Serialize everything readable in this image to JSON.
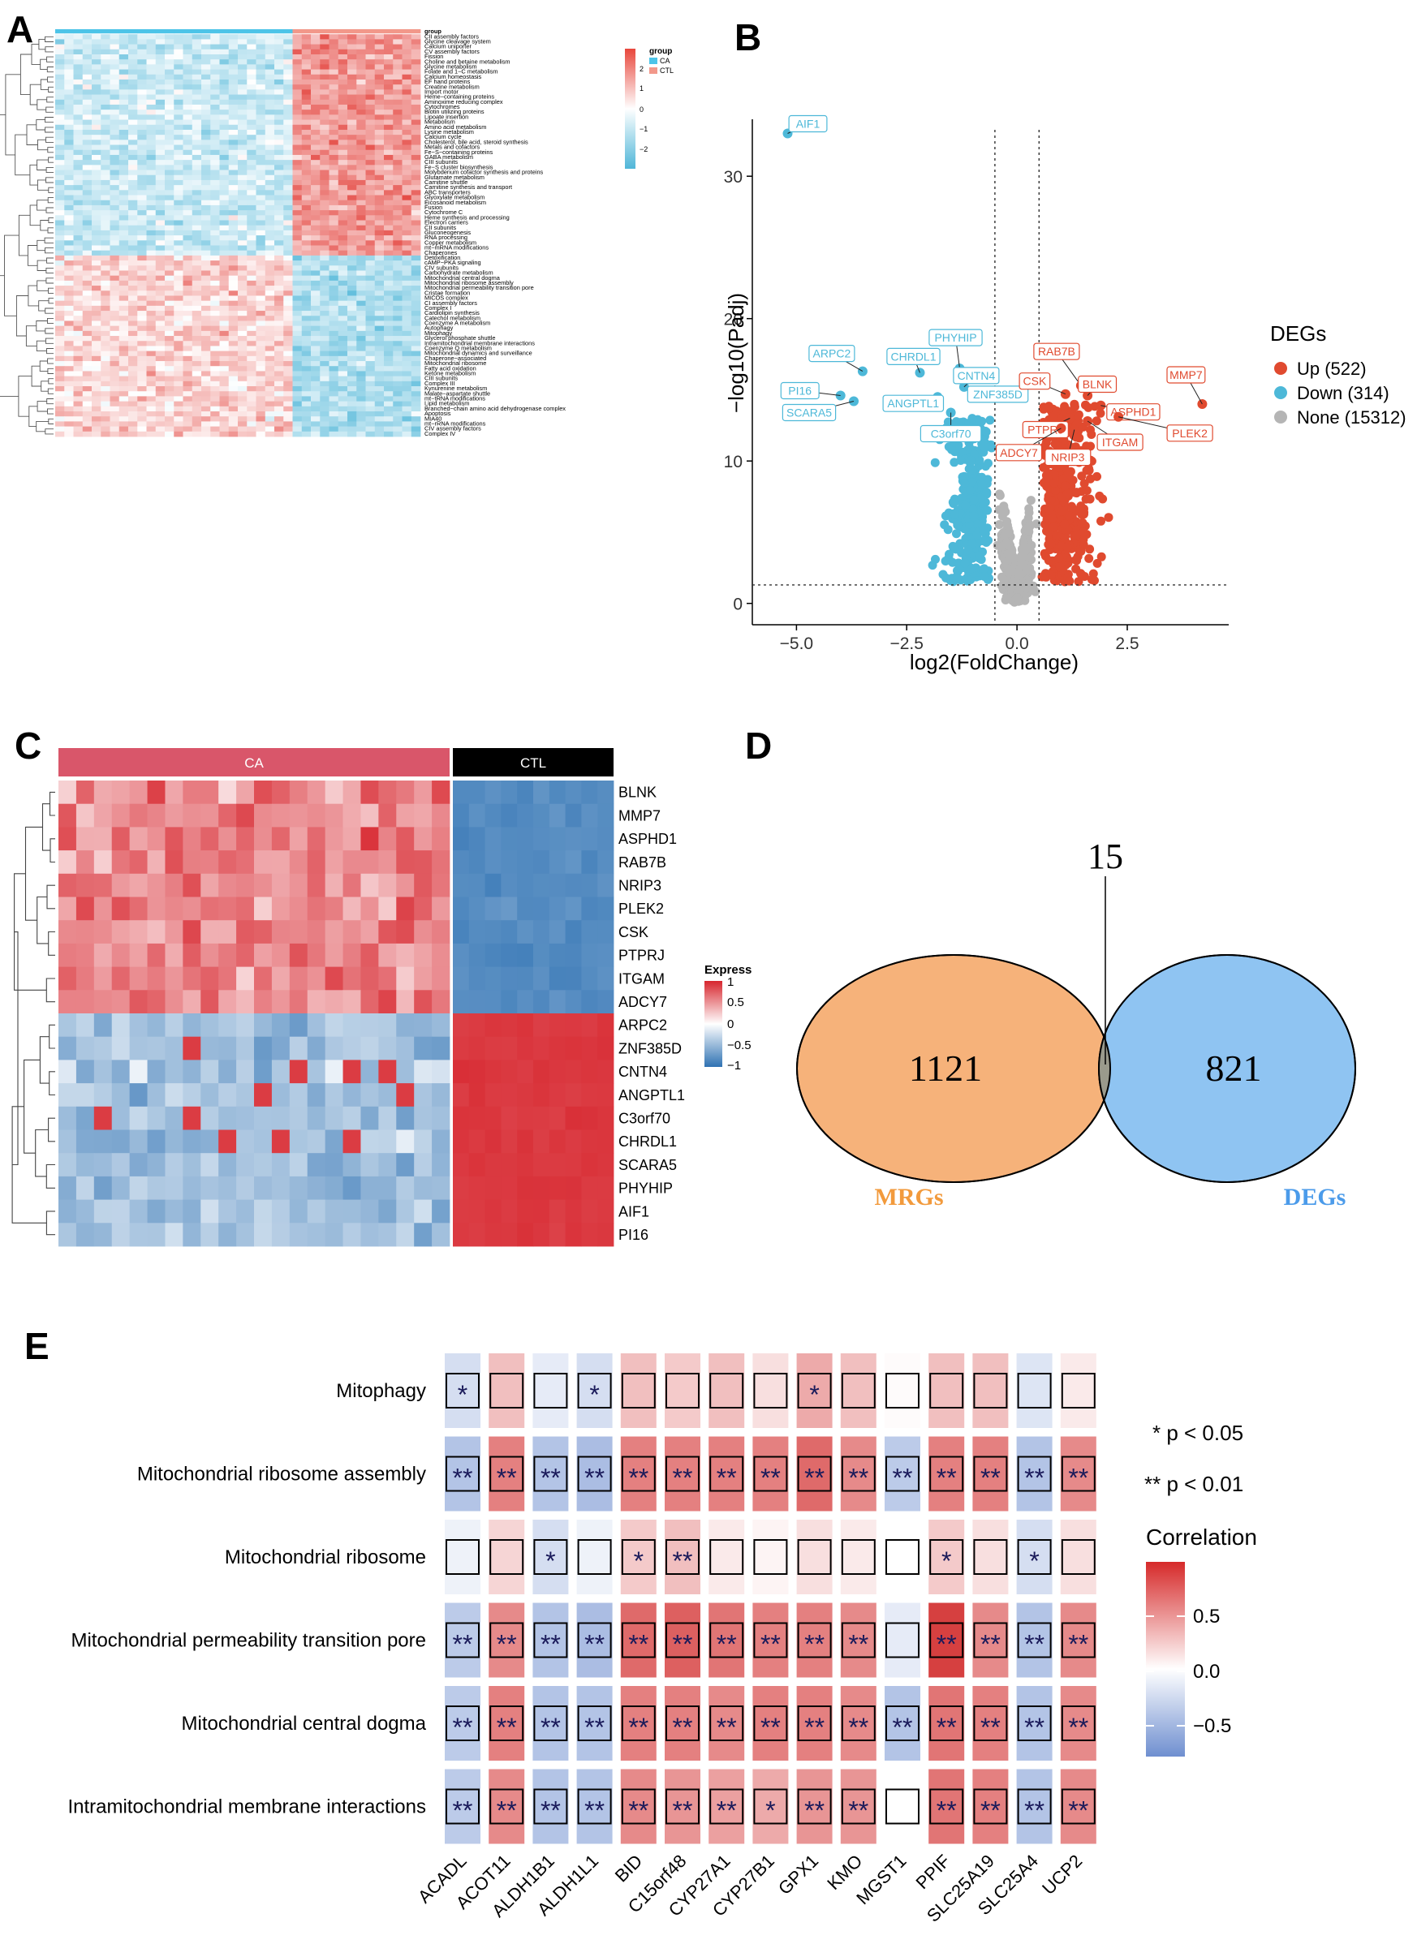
{
  "colors": {
    "up": "#E04A2F",
    "down": "#4DB8D8",
    "none": "#B5B5B5",
    "heat_red": "#D7262E",
    "heat_blue": "#2F72B3",
    "mrgs": "#F6B27A",
    "degs": "#8FC4F2",
    "ca_bar": "#D9566A",
    "ctl_bar": "#000000"
  },
  "panels": {
    "A": {
      "letter": "A",
      "legend_group_title": "group",
      "legend_groups": [
        "CA",
        "CTL"
      ],
      "scale_ticks": [
        "2",
        "1",
        "0",
        "−1",
        "−2"
      ],
      "row_labels": [
        "group",
        "CII assembly factors",
        "Glycine cleavage system",
        "Calcium uniporter",
        "CV assembly factors",
        "Fission",
        "Choline and betaine metabolism",
        "Glycine metabolism",
        "Folate and 1−C metabolism",
        "Calcium homeostasis",
        "EF hand proteins",
        "Creatine metabolism",
        "Import motor",
        "Heme−containing proteins",
        "Aminoxime reducing complex",
        "Cytochromes",
        "Biotin utilizing proteins",
        "Lipoate insertion",
        "Metabolism",
        "Amino acid metabolism",
        "Lysine metabolism",
        "Calcium cycle",
        "Cholesterol, bile acid, steroid synthesis",
        "Metals and cofactors",
        "Fe−S−containing proteins",
        "GABA metabolism",
        "CIII subunits",
        "Fe−S cluster biosynthesis",
        "Molybdenum cofactor synthesis and proteins",
        "Glutamate metabolism",
        "Carnitine shuttle",
        "Carnitine synthesis and transport",
        "ABC transporters",
        "Glyoxylate metabolism",
        "Eicosanoid metabolism",
        "Fusion",
        "Cytochrome C",
        "Heme synthesis and processing",
        "Electron carriers",
        "CII subunits",
        "Gluconeogenesis",
        "RNA processing",
        "Copper metabolism",
        "mt−mRNA modifications",
        "Chaperones",
        "Detoxification",
        "cAMP−PKA signaling",
        "CIV subunits",
        "Carbohydrate metabolism",
        "Mitochondrial central dogma",
        "Mitochondrial ribosome assembly",
        "Mitochondrial permeability transition pore",
        "Cristae formation",
        "MICOS complex",
        "CI assembly factors",
        "Complex I",
        "Cardiolipin synthesis",
        "Catechol metabolism",
        "Coenzyme A metabolism",
        "Autophagy",
        "Mitophagy",
        "Glycerol phosphate shuttle",
        "Intramitochondrial membrane interactions",
        "Coenzyme Q metabolism",
        "Mitochondrial dynamics and surveillance",
        "Chaperone−associated",
        "Mitochondrial ribosome",
        "Fatty acid oxidation",
        "Ketone metabolism",
        "CIII subunits",
        "Complex III",
        "Kynurenine metabolism",
        "Malate−aspartate shuttle",
        "mt−tRNA modifications",
        "Lipid metabolism",
        "Branched−chain amino acid dehydrogenase complex",
        "Apoptosis",
        "MIA40",
        "mt−rRNA modifications",
        "CIV assembly factors",
        "Complex IV"
      ]
    },
    "B": {
      "letter": "B",
      "xlabel": "log2(FoldChange)",
      "ylabel": "−log10(Padj)",
      "xticks": [
        "−5.0",
        "−2.5",
        "0.0",
        "2.5"
      ],
      "yticks": [
        "0",
        "10",
        "20",
        "30"
      ],
      "legend_title": "DEGs",
      "legend_items": [
        "Up (522)",
        "Down (314)",
        "None (15312)"
      ],
      "gene_labels": [
        "AIF1",
        "PHYHIP",
        "ARPC2",
        "CHRDL1",
        "CNTN4",
        "PI16",
        "ANGPTL1",
        "ZNF385D",
        "SCARA5",
        "C3orf70",
        "RAB7B",
        "MMP7",
        "CSK",
        "BLNK",
        "ASPHD1",
        "PTPRJ",
        "ITGAM",
        "PLEK2",
        "ADCY7",
        "NRIP3"
      ]
    },
    "C": {
      "letter": "C",
      "group_labels": [
        "CA",
        "CTL"
      ],
      "legend_title": "Express",
      "legend_ticks": [
        "1",
        "0.5",
        "0",
        "−0.5",
        "−1"
      ],
      "genes": [
        "BLNK",
        "MMP7",
        "ASPHD1",
        "RAB7B",
        "NRIP3",
        "PLEK2",
        "CSK",
        "PTPRJ",
        "ITGAM",
        "ADCY7",
        "ARPC2",
        "ZNF385D",
        "CNTN4",
        "ANGPTL1",
        "C3orf70",
        "CHRDL1",
        "SCARA5",
        "PHYHIP",
        "AIF1",
        "PI16"
      ]
    },
    "D": {
      "letter": "D",
      "intersection": "15",
      "left_only": "1121",
      "right_only": "821",
      "left_label": "MRGs",
      "right_label": "DEGs"
    },
    "E": {
      "letter": "E",
      "sig1": "* p < 0.05",
      "sig2": "** p < 0.01",
      "legend_title": "Correlation",
      "legend_ticks": [
        "0.5",
        "0.0",
        "−0.5"
      ]
    }
  },
  "chart_data": [
    {
      "type": "heatmap",
      "panel": "A",
      "groups": [
        "CA",
        "CTL"
      ],
      "color_range": [
        -2,
        2
      ]
    },
    {
      "type": "scatter",
      "panel": "B",
      "xlabel": "log2(FoldChange)",
      "ylabel": "−log10(Padj)",
      "xlim": [
        -6,
        4.8
      ],
      "ylim": [
        -1.5,
        34
      ],
      "thresholds": {
        "x": [
          -0.5,
          0.5
        ],
        "y": 1.3
      },
      "series": [
        {
          "name": "Up (522)",
          "count": 522
        },
        {
          "name": "Down (314)",
          "count": 314
        },
        {
          "name": "None (15312)",
          "count": 15312
        }
      ],
      "labeled_points": [
        {
          "gene": "AIF1",
          "x": -5.2,
          "y": 33.0
        },
        {
          "gene": "PHYHIP",
          "x": -1.3,
          "y": 16.5
        },
        {
          "gene": "ARPC2",
          "x": -3.5,
          "y": 16.3
        },
        {
          "gene": "CHRDL1",
          "x": -2.2,
          "y": 16.2
        },
        {
          "gene": "CNTN4",
          "x": -1.2,
          "y": 15.2
        },
        {
          "gene": "PI16",
          "x": -4.0,
          "y": 14.6
        },
        {
          "gene": "ANGPTL1",
          "x": -1.8,
          "y": 14.5
        },
        {
          "gene": "ZNF385D",
          "x": -0.95,
          "y": 14.8
        },
        {
          "gene": "SCARA5",
          "x": -3.7,
          "y": 14.2
        },
        {
          "gene": "C3orf70",
          "x": -1.5,
          "y": 13.4
        },
        {
          "gene": "RAB7B",
          "x": 1.45,
          "y": 15.3
        },
        {
          "gene": "MMP7",
          "x": 4.2,
          "y": 14.0
        },
        {
          "gene": "CSK",
          "x": 1.1,
          "y": 14.7
        },
        {
          "gene": "BLNK",
          "x": 1.6,
          "y": 14.6
        },
        {
          "gene": "ASPHD1",
          "x": 1.9,
          "y": 13.9
        },
        {
          "gene": "PTPRJ",
          "x": 1.2,
          "y": 13.0
        },
        {
          "gene": "ITGAM",
          "x": 1.6,
          "y": 12.8
        },
        {
          "gene": "PLEK2",
          "x": 2.3,
          "y": 13.1
        },
        {
          "gene": "ADCY7",
          "x": 1.0,
          "y": 12.3
        },
        {
          "gene": "NRIP3",
          "x": 1.3,
          "y": 12.2
        }
      ]
    },
    {
      "type": "heatmap",
      "panel": "C",
      "groups": [
        "CA",
        "CTL"
      ],
      "genes": [
        "BLNK",
        "MMP7",
        "ASPHD1",
        "RAB7B",
        "NRIP3",
        "PLEK2",
        "CSK",
        "PTPRJ",
        "ITGAM",
        "ADCY7",
        "ARPC2",
        "ZNF385D",
        "CNTN4",
        "ANGPTL1",
        "C3orf70",
        "CHRDL1",
        "SCARA5",
        "PHYHIP",
        "AIF1",
        "PI16"
      ],
      "color_range": [
        -1,
        1
      ]
    },
    {
      "type": "venn",
      "panel": "D",
      "sets": [
        "MRGs",
        "DEGs"
      ],
      "values": {
        "MRGs_only": 1121,
        "DEGs_only": 821,
        "intersection": 15
      }
    },
    {
      "type": "heatmap",
      "panel": "E",
      "rows": [
        "Mitophagy",
        "Mitochondrial ribosome assembly",
        "Mitochondrial ribosome",
        "Mitochondrial permeability transition pore",
        "Mitochondrial central dogma",
        "Intramitochondrial membrane interactions"
      ],
      "cols": [
        "ACADL",
        "ACOT11",
        "ALDH1B1",
        "ALDH1L1",
        "BID",
        "C15orf48",
        "CYP27A1",
        "CYP27B1",
        "GPX1",
        "KMO",
        "MGST1",
        "PPIF",
        "SLC25A19",
        "SLC25A4",
        "UCP2"
      ],
      "values": [
        [
          -0.25,
          0.3,
          -0.15,
          -0.25,
          0.3,
          0.25,
          0.3,
          0.15,
          0.4,
          0.3,
          0.02,
          0.3,
          0.3,
          -0.2,
          0.1
        ],
        [
          -0.45,
          0.6,
          -0.45,
          -0.5,
          0.6,
          0.6,
          0.6,
          0.6,
          0.7,
          0.55,
          -0.4,
          0.6,
          0.6,
          -0.45,
          0.55
        ],
        [
          -0.1,
          0.2,
          -0.25,
          -0.1,
          0.25,
          0.3,
          0.1,
          0.05,
          0.15,
          0.1,
          0.0,
          0.25,
          0.15,
          -0.25,
          0.15
        ],
        [
          -0.4,
          0.55,
          -0.45,
          -0.5,
          0.7,
          0.75,
          0.65,
          0.6,
          0.6,
          0.55,
          -0.15,
          0.9,
          0.55,
          -0.45,
          0.55
        ],
        [
          -0.4,
          0.6,
          -0.45,
          -0.45,
          0.6,
          0.6,
          0.55,
          0.6,
          0.6,
          0.55,
          -0.45,
          0.65,
          0.6,
          -0.45,
          0.55
        ],
        [
          -0.4,
          0.55,
          -0.45,
          -0.45,
          0.55,
          0.5,
          0.45,
          0.4,
          0.5,
          0.5,
          0.0,
          0.65,
          0.6,
          -0.45,
          0.55
        ]
      ],
      "stars": [
        [
          "*",
          "",
          "",
          "*",
          "",
          "",
          "",
          "",
          "*",
          "",
          "",
          "",
          "",
          "",
          ""
        ],
        [
          "**",
          "**",
          "**",
          "**",
          "**",
          "**",
          "**",
          "**",
          "**",
          "**",
          "**",
          "**",
          "**",
          "**",
          "**"
        ],
        [
          "",
          "",
          "*",
          "",
          "*",
          "**",
          "",
          "",
          "",
          "",
          "",
          "*",
          "",
          "*",
          ""
        ],
        [
          "**",
          "**",
          "**",
          "**",
          "**",
          "**",
          "**",
          "**",
          "**",
          "**",
          "",
          "**",
          "**",
          "**",
          "**"
        ],
        [
          "**",
          "**",
          "**",
          "**",
          "**",
          "**",
          "**",
          "**",
          "**",
          "**",
          "**",
          "**",
          "**",
          "**",
          "**"
        ],
        [
          "**",
          "**",
          "**",
          "**",
          "**",
          "**",
          "**",
          "*",
          "**",
          "**",
          "",
          "**",
          "**",
          "**",
          "**"
        ]
      ],
      "color_range": [
        -0.8,
        0.9
      ]
    }
  ]
}
